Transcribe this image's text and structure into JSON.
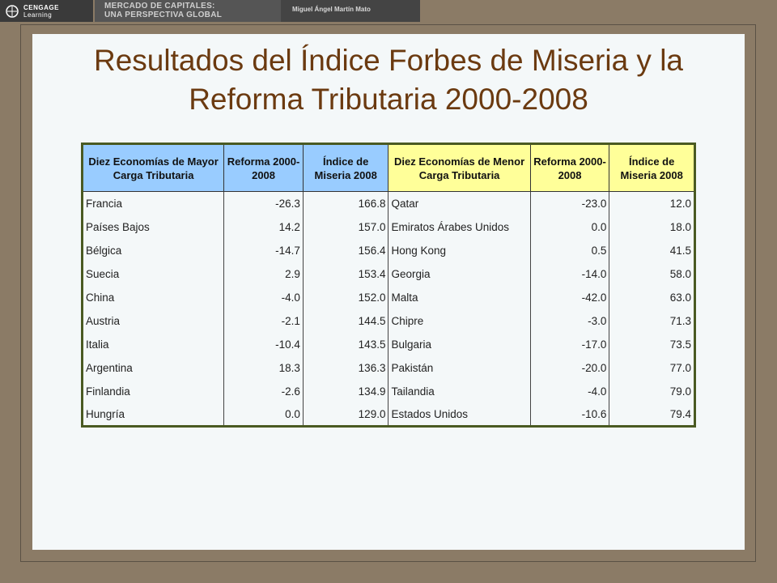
{
  "header": {
    "brand_line1": "CENGAGE",
    "brand_line2": "Learning",
    "book_line1": "MERCADO DE CAPITALES:",
    "book_line2": "UNA PERSPECTIVA GLOBAL",
    "author": "Miguel Ángel Martín Mato"
  },
  "slide": {
    "title": "Resultados del Índice Forbes de Miseria y la Reforma Tributaria 2000-2008"
  },
  "table": {
    "headers": [
      "Diez Economías de Mayor Carga Tributaria",
      "Reforma 2000-2008",
      "Índice de Miseria 2008",
      "Diez Economías de Menor Carga Tributaria",
      "Reforma 2000-2008",
      "Índice de Miseria 2008"
    ],
    "rows": [
      [
        "Francia",
        "-26.3",
        "166.8",
        "Qatar",
        "-23.0",
        "12.0"
      ],
      [
        "Países Bajos",
        "14.2",
        "157.0",
        "Emiratos Árabes Unidos",
        "0.0",
        "18.0"
      ],
      [
        "Bélgica",
        "-14.7",
        "156.4",
        "Hong Kong",
        "0.5",
        "41.5"
      ],
      [
        "Suecia",
        "2.9",
        "153.4",
        "Georgia",
        "-14.0",
        "58.0"
      ],
      [
        "China",
        "-4.0",
        "152.0",
        "Malta",
        "-42.0",
        "63.0"
      ],
      [
        "Austria",
        "-2.1",
        "144.5",
        "Chipre",
        "-3.0",
        "71.3"
      ],
      [
        "Italia",
        "-10.4",
        "143.5",
        "Bulgaria",
        "-17.0",
        "73.5"
      ],
      [
        "Argentina",
        "18.3",
        "136.3",
        "Pakistán",
        "-20.0",
        "77.0"
      ],
      [
        "Finlandia",
        "-2.6",
        "134.9",
        "Tailandia",
        "-4.0",
        "79.0"
      ],
      [
        "Hungría",
        "0.0",
        "129.0",
        "Estados Unidos",
        "-10.6",
        "79.4"
      ]
    ]
  },
  "colors": {
    "title": "#6b3a10",
    "header_blue": "#99ccff",
    "header_yellow": "#ffff99",
    "frame": "#8b7b66",
    "table_border": "#4a5a22"
  }
}
